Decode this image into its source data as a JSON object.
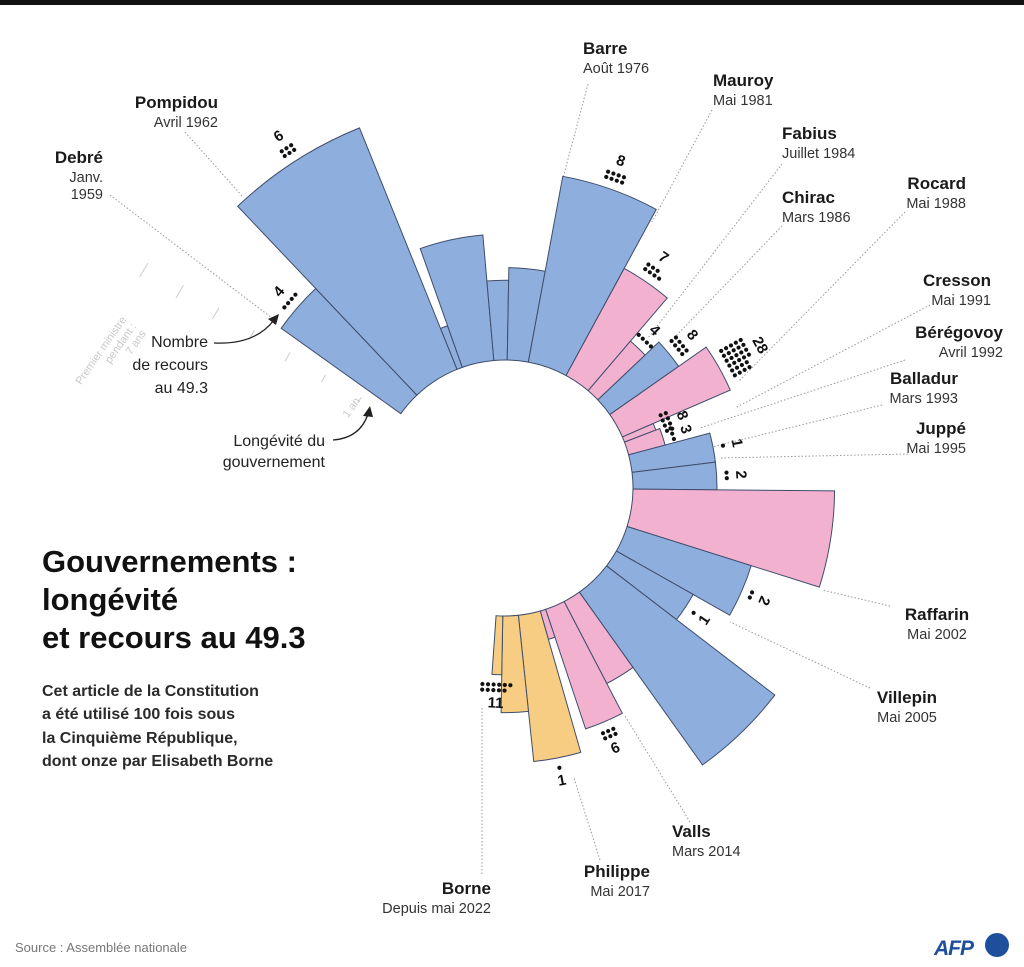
{
  "title": [
    "Gouvernements :",
    "longévité",
    "et recours au 49.3"
  ],
  "subtitle": [
    "Cet article de la Constitution",
    "a été utilisé 100 fois sous",
    "la Cinquième République,",
    "dont onze par Elisabeth Borne"
  ],
  "legend": {
    "count_label": [
      "Nombre",
      "de recours",
      "au 49.3"
    ],
    "length_label": [
      "Longévité du",
      "gouvernement"
    ]
  },
  "axis": {
    "tick_1": "1 an",
    "tick_7": [
      "Premier ministre",
      "pendant :",
      "7 ans"
    ]
  },
  "source": "Source : Assemblée nationale",
  "logo": "AFP",
  "colors": {
    "blue": "#8eaede",
    "pink": "#f3b1d0",
    "yellow": "#f6cd82",
    "outline": "#3f4d6b"
  },
  "chart_data": {
    "type": "radial-bar",
    "value_unit": "years",
    "bars": [
      {
        "pm": "Debré",
        "date": [
          "Janv.",
          "1959"
        ],
        "years": 3.5,
        "uses": 4,
        "group": "blue"
      },
      {
        "pm": "Pompidou",
        "date": [
          "Avril 1962"
        ],
        "years": 6.2,
        "uses": 6,
        "group": "blue"
      },
      {
        "years": 1.05,
        "group": "blue"
      },
      {
        "years": 3.0,
        "group": "blue"
      },
      {
        "years": 1.9,
        "group": "blue"
      },
      {
        "years": 2.2,
        "group": "blue"
      },
      {
        "pm": "Barre",
        "date": [
          "Août 1976"
        ],
        "years": 4.5,
        "uses": 8,
        "group": "blue"
      },
      {
        "pm": "Mauroy",
        "date": [
          "Mai 1981"
        ],
        "years": 2.9,
        "uses": 7,
        "group": "pink"
      },
      {
        "pm": "Fabius",
        "date": [
          "Juillet 1984"
        ],
        "years": 1.55,
        "uses": 4,
        "group": "pink"
      },
      {
        "pm": "Chirac",
        "date": [
          "Mars 1986"
        ],
        "years": 2.0,
        "uses": 8,
        "group": "blue"
      },
      {
        "pm": "Rocard",
        "date": [
          "Mai 1988"
        ],
        "years": 2.8,
        "uses": 28,
        "group": "pink"
      },
      {
        "pm": "Cresson",
        "date": [
          "Mai 1991"
        ],
        "years": 0.8,
        "uses": 8,
        "group": "pink"
      },
      {
        "pm": "Bérégovoy",
        "date": [
          "Avril 1992"
        ],
        "years": 0.9,
        "uses": 3,
        "group": "pink"
      },
      {
        "pm": "Balladur",
        "date": [
          "Mars 1993"
        ],
        "years": 2.0,
        "uses": 1,
        "group": "blue"
      },
      {
        "pm": "Juppé",
        "date": [
          "Mai 1995"
        ],
        "years": 2.0,
        "uses": 2,
        "group": "blue"
      },
      {
        "years": 4.8,
        "group": "pink"
      },
      {
        "pm": "Raffarin",
        "date": [
          "Mai 2002"
        ],
        "years": 3.1,
        "uses": 2,
        "group": "blue"
      },
      {
        "pm": "Villepin",
        "date": [
          "Mai 2005"
        ],
        "years": 2.1,
        "uses": 1,
        "group": "blue"
      },
      {
        "years": 5.05,
        "group": "blue"
      },
      {
        "years": 2.2,
        "group": "pink"
      },
      {
        "pm": "Valls",
        "date": [
          "Mars 2014"
        ],
        "years": 3.0,
        "uses": 6,
        "group": "pink"
      },
      {
        "years": 0.7,
        "group": "pink"
      },
      {
        "pm": "Philippe",
        "date": [
          "Mai 2017"
        ],
        "years": 3.5,
        "uses": 1,
        "group": "yellow"
      },
      {
        "years": 2.3,
        "group": "yellow"
      },
      {
        "pm": "Borne",
        "date": [
          "Depuis mai 2022"
        ],
        "years": 1.4,
        "uses": 11,
        "group": "yellow"
      }
    ]
  }
}
